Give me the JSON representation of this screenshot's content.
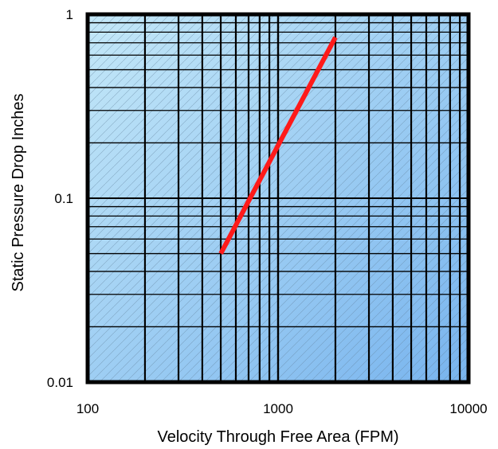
{
  "chart_data": {
    "type": "line",
    "title": "",
    "xlabel": "Velocity Through Free Area (FPM)",
    "ylabel": "Static Pressure Drop Inches",
    "x_scale": "log",
    "y_scale": "log",
    "xlim": [
      100,
      10000
    ],
    "ylim": [
      0.01,
      1
    ],
    "x_ticks": [
      {
        "value": 100,
        "label": "100"
      },
      {
        "value": 1000,
        "label": "1000"
      },
      {
        "value": 10000,
        "label": "10000"
      }
    ],
    "y_ticks": [
      {
        "value": 0.01,
        "label": "0.01"
      },
      {
        "value": 0.1,
        "label": "0.1"
      },
      {
        "value": 1,
        "label": "1"
      }
    ],
    "grid": true,
    "legend": "none",
    "series": [
      {
        "color": "#ff1a1a",
        "x": [
          500,
          2000
        ],
        "y": [
          0.05,
          0.75
        ]
      }
    ],
    "plot_background": [
      "#c4e8f8",
      "#78b4ee"
    ]
  }
}
